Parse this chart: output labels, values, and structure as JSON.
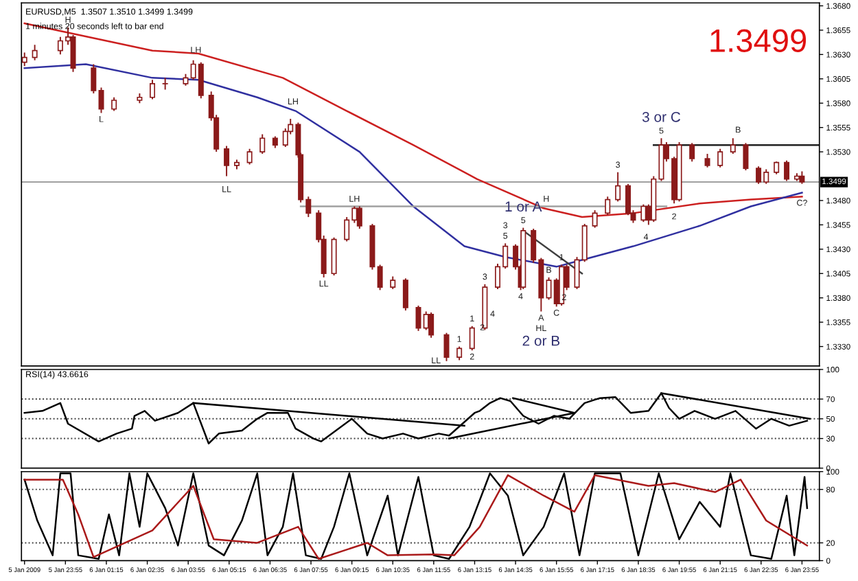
{
  "chart_data": [
    {
      "type": "candlestick",
      "title": "EURUSD,M5  1.3507 1.3510 1.3499 1.3499",
      "subtitle": "1 minutes 20 seconds left to bar end",
      "tick_labels": "y",
      "xlim": [
        "2009-01-05T22:29",
        "2009-01-07T00:29"
      ],
      "ylim": [
        1.331,
        1.3683
      ],
      "yticks": [
        {
          "value": 1.333,
          "label": "1.3330"
        },
        {
          "value": 1.3355,
          "label": "1.3355"
        },
        {
          "value": 1.338,
          "label": "1.3380"
        },
        {
          "value": 1.3405,
          "label": "1.3405"
        },
        {
          "value": 1.343,
          "label": "1.3430"
        },
        {
          "value": 1.3455,
          "label": "1.3455"
        },
        {
          "value": 1.348,
          "label": "1.3480"
        },
        {
          "value": 1.353,
          "label": "1.3530"
        },
        {
          "value": 1.3555,
          "label": "1.3555"
        },
        {
          "value": 1.358,
          "label": "1.3580"
        },
        {
          "value": 1.3605,
          "label": "1.3605"
        },
        {
          "value": 1.363,
          "label": "1.3630"
        },
        {
          "value": 1.3655,
          "label": "1.3655"
        },
        {
          "value": 1.368,
          "label": "1.3680"
        }
      ],
      "ref_lines": [
        {
          "axis": "y",
          "value": 1.3499,
          "label": "1.3499",
          "color": "#a0a0a0"
        }
      ],
      "series": [
        {
          "type": "candlestick",
          "color": "#8b1a1a",
          "x": [
            "2009-01-05T22:35",
            "2009-01-05T22:55",
            "2009-01-05T23:45",
            "2009-01-06T00:00",
            "2009-01-06T00:10",
            "2009-01-06T00:50",
            "2009-01-06T01:05",
            "2009-01-06T01:30",
            "2009-01-06T02:20",
            "2009-01-06T02:45",
            "2009-01-06T03:10",
            "2009-01-06T03:50",
            "2009-01-06T04:05",
            "2009-01-06T04:20",
            "2009-01-06T04:40",
            "2009-01-06T04:50",
            "2009-01-06T05:10",
            "2009-01-06T05:30",
            "2009-01-06T05:55",
            "2009-01-06T06:20",
            "2009-01-06T06:45",
            "2009-01-06T07:05",
            "2009-01-06T07:15",
            "2009-01-06T07:30",
            "2009-01-06T07:35",
            "2009-01-06T07:50",
            "2009-01-06T08:10",
            "2009-01-06T08:20",
            "2009-01-06T08:40",
            "2009-01-06T09:05",
            "2009-01-06T09:20",
            "2009-01-06T09:30",
            "2009-01-06T09:55",
            "2009-01-06T10:10",
            "2009-01-06T10:35",
            "2009-01-06T11:00",
            "2009-01-06T11:25",
            "2009-01-06T11:40",
            "2009-01-06T11:50",
            "2009-01-06T12:20",
            "2009-01-06T12:45",
            "2009-01-06T13:10",
            "2009-01-06T13:35",
            "2009-01-06T14:00",
            "2009-01-06T14:15",
            "2009-01-06T14:35",
            "2009-01-06T14:45",
            "2009-01-06T14:50",
            "2009-01-06T15:10",
            "2009-01-06T15:25",
            "2009-01-06T15:40",
            "2009-01-06T15:55",
            "2009-01-06T16:05",
            "2009-01-06T16:15",
            "2009-01-06T16:35",
            "2009-01-06T16:50",
            "2009-01-06T17:10",
            "2009-01-06T17:35",
            "2009-01-06T17:55",
            "2009-01-06T18:15",
            "2009-01-06T18:25",
            "2009-01-06T18:45",
            "2009-01-06T18:55",
            "2009-01-06T19:05",
            "2009-01-06T19:20",
            "2009-01-06T19:30",
            "2009-01-06T19:45",
            "2009-01-06T19:55",
            "2009-01-06T20:20",
            "2009-01-06T20:50",
            "2009-01-06T21:15",
            "2009-01-06T21:40",
            "2009-01-06T22:05",
            "2009-01-06T22:30",
            "2009-01-06T22:45",
            "2009-01-06T23:05",
            "2009-01-06T23:25",
            "2009-01-06T23:45",
            "2009-01-06T23:55"
          ],
          "ohlc": [
            [
              1.3622,
              1.3632,
              1.3618,
              1.3627
            ],
            [
              1.3627,
              1.364,
              1.3624,
              1.3634
            ],
            [
              1.3634,
              1.3648,
              1.363,
              1.3644
            ],
            [
              1.3644,
              1.3658,
              1.364,
              1.3648
            ],
            [
              1.3648,
              1.365,
              1.3612,
              1.3616
            ],
            [
              1.3616,
              1.362,
              1.359,
              1.3593
            ],
            [
              1.3593,
              1.3596,
              1.357,
              1.3574
            ],
            [
              1.3574,
              1.3586,
              1.3572,
              1.3583
            ],
            [
              1.3583,
              1.359,
              1.358,
              1.3586
            ],
            [
              1.3586,
              1.3604,
              1.3584,
              1.36
            ],
            [
              1.36,
              1.3606,
              1.3594,
              1.36
            ],
            [
              1.36,
              1.361,
              1.3598,
              1.3606
            ],
            [
              1.3606,
              1.3624,
              1.3604,
              1.362
            ],
            [
              1.362,
              1.3622,
              1.3585,
              1.3588
            ],
            [
              1.3588,
              1.3592,
              1.3562,
              1.3565
            ],
            [
              1.3565,
              1.3568,
              1.353,
              1.3533
            ],
            [
              1.3533,
              1.3536,
              1.3505,
              1.3516
            ],
            [
              1.3516,
              1.3522,
              1.3512,
              1.3519
            ],
            [
              1.3519,
              1.3533,
              1.3517,
              1.353
            ],
            [
              1.353,
              1.3548,
              1.3528,
              1.3544
            ],
            [
              1.3544,
              1.3546,
              1.3534,
              1.3537
            ],
            [
              1.3537,
              1.3554,
              1.3535,
              1.3551
            ],
            [
              1.3551,
              1.3564,
              1.3548,
              1.3558
            ],
            [
              1.3558,
              1.356,
              1.3524,
              1.3527
            ],
            [
              1.3527,
              1.3529,
              1.3478,
              1.3481
            ],
            [
              1.3481,
              1.3484,
              1.3463,
              1.3467
            ],
            [
              1.3467,
              1.347,
              1.3437,
              1.344
            ],
            [
              1.344,
              1.3444,
              1.3401,
              1.3405
            ],
            [
              1.3405,
              1.3442,
              1.3403,
              1.344
            ],
            [
              1.344,
              1.3463,
              1.3438,
              1.346
            ],
            [
              1.346,
              1.3474,
              1.3457,
              1.3472
            ],
            [
              1.3472,
              1.3474,
              1.3451,
              1.3454
            ],
            [
              1.3454,
              1.3456,
              1.3409,
              1.3412
            ],
            [
              1.3412,
              1.3414,
              1.3388,
              1.3391
            ],
            [
              1.3391,
              1.3402,
              1.3389,
              1.3398
            ],
            [
              1.3398,
              1.34,
              1.3367,
              1.337
            ],
            [
              1.337,
              1.3372,
              1.3346,
              1.3349
            ],
            [
              1.3349,
              1.3366,
              1.3347,
              1.3363
            ],
            [
              1.3363,
              1.3365,
              1.3339,
              1.3342
            ],
            [
              1.3342,
              1.3344,
              1.3315,
              1.3319
            ],
            [
              1.3319,
              1.333,
              1.3316,
              1.3328
            ],
            [
              1.3328,
              1.3351,
              1.3326,
              1.3349
            ],
            [
              1.3349,
              1.3394,
              1.3347,
              1.3391
            ],
            [
              1.3391,
              1.3415,
              1.3389,
              1.3412
            ],
            [
              1.3412,
              1.3436,
              1.341,
              1.3433
            ],
            [
              1.3433,
              1.3435,
              1.3409,
              1.3412
            ],
            [
              1.3412,
              1.3414,
              1.3388,
              1.3391
            ],
            [
              1.3391,
              1.3452,
              1.3389,
              1.3449
            ],
            [
              1.3449,
              1.3451,
              1.3416,
              1.3419
            ],
            [
              1.3419,
              1.3421,
              1.3366,
              1.338
            ],
            [
              1.338,
              1.3401,
              1.3378,
              1.3398
            ],
            [
              1.3398,
              1.34,
              1.3371,
              1.3374
            ],
            [
              1.3374,
              1.3414,
              1.3372,
              1.3412
            ],
            [
              1.3412,
              1.3414,
              1.3388,
              1.3391
            ],
            [
              1.3391,
              1.3422,
              1.3389,
              1.3419
            ],
            [
              1.3419,
              1.3456,
              1.3417,
              1.3454
            ],
            [
              1.3454,
              1.347,
              1.3452,
              1.3467
            ],
            [
              1.3467,
              1.3484,
              1.3465,
              1.3481
            ],
            [
              1.3481,
              1.3509,
              1.3479,
              1.3495
            ],
            [
              1.3495,
              1.3497,
              1.3465,
              1.3467
            ],
            [
              1.3467,
              1.347,
              1.3457,
              1.346
            ],
            [
              1.346,
              1.3476,
              1.3458,
              1.3474
            ],
            [
              1.3474,
              1.3476,
              1.3455,
              1.346
            ],
            [
              1.346,
              1.3505,
              1.3458,
              1.3502
            ],
            [
              1.3502,
              1.3544,
              1.35,
              1.3537
            ],
            [
              1.3537,
              1.354,
              1.352,
              1.3523
            ],
            [
              1.3523,
              1.3525,
              1.3477,
              1.3481
            ],
            [
              1.3481,
              1.354,
              1.3479,
              1.3537
            ],
            [
              1.3537,
              1.3539,
              1.352,
              1.3523
            ],
            [
              1.3523,
              1.3528,
              1.3514,
              1.3516
            ],
            [
              1.3516,
              1.3533,
              1.3514,
              1.353
            ],
            [
              1.353,
              1.3544,
              1.3528,
              1.3537
            ],
            [
              1.3537,
              1.3539,
              1.3511,
              1.3513
            ],
            [
              1.3513,
              1.3515,
              1.3497,
              1.3499
            ],
            [
              1.3499,
              1.3512,
              1.3497,
              1.3509
            ],
            [
              1.3509,
              1.352,
              1.3507,
              1.3519
            ],
            [
              1.3519,
              1.3521,
              1.35,
              1.3502
            ],
            [
              1.3502,
              1.3508,
              1.35,
              1.3505
            ],
            [
              1.3505,
              1.351,
              1.3497,
              1.3499
            ]
          ]
        },
        {
          "type": "line",
          "color": "#cc2020",
          "x": [
            "2009-01-05T22:35",
            "2009-01-06T02:45",
            "2009-01-06T04:15",
            "2009-01-06T07:00",
            "2009-01-06T09:05",
            "2009-01-06T11:15",
            "2009-01-06T13:20",
            "2009-01-06T15:30",
            "2009-01-06T16:45",
            "2009-01-06T18:25",
            "2009-01-06T20:35",
            "2009-01-06T22:15",
            "2009-01-06T23:55"
          ],
          "values": [
            1.3662,
            1.3634,
            1.3631,
            1.3606,
            1.3572,
            1.3537,
            1.3502,
            1.3472,
            1.3463,
            1.3467,
            1.3477,
            1.3481,
            1.3484
          ]
        },
        {
          "type": "line",
          "color": "#3030a0",
          "x": [
            "2009-01-05T22:35",
            "2009-01-06T00:35",
            "2009-01-06T02:45",
            "2009-01-06T04:15",
            "2009-01-06T06:10",
            "2009-01-06T07:25",
            "2009-01-06T09:30",
            "2009-01-06T11:15",
            "2009-01-06T12:55",
            "2009-01-06T14:15",
            "2009-01-06T15:55",
            "2009-01-06T16:45",
            "2009-01-06T18:25",
            "2009-01-06T20:35",
            "2009-01-06T22:15",
            "2009-01-06T23:55"
          ],
          "values": [
            1.3616,
            1.362,
            1.3606,
            1.3604,
            1.3586,
            1.3572,
            1.353,
            1.3474,
            1.3433,
            1.3422,
            1.3412,
            1.3419,
            1.3433,
            1.3454,
            1.3474,
            1.3488
          ]
        },
        {
          "type": "line",
          "color": "#a0a0a0",
          "x": [
            "2009-01-06T07:35",
            "2009-01-06T19:30"
          ],
          "values": [
            1.3474,
            1.3474
          ]
        },
        {
          "type": "line",
          "color": "#202020",
          "x": [
            "2009-01-06T19:05",
            "2009-01-07T00:29"
          ],
          "values": [
            1.3537,
            1.3537
          ]
        },
        {
          "type": "line",
          "color": "#404040",
          "x": [
            "2009-01-06T14:50",
            "2009-01-06T16:45"
          ],
          "values": [
            1.3449,
            1.3405
          ]
        }
      ],
      "annotations": [
        "1.3499",
        {
          "text": "H",
          "x": "2009-01-06T00:00",
          "y": 1.3658
        },
        {
          "text": "L",
          "x": "2009-01-06T01:05",
          "y": 1.357
        },
        {
          "text": "LH",
          "x": "2009-01-06T04:10",
          "y": 1.3627
        },
        {
          "text": "LH",
          "x": "2009-01-06T07:20",
          "y": 1.3574
        },
        {
          "text": "LL",
          "x": "2009-01-06T05:10",
          "y": 1.3498
        },
        {
          "text": "LL",
          "x": "2009-01-06T08:20",
          "y": 1.3401
        },
        {
          "text": "LH",
          "x": "2009-01-06T09:20",
          "y": 1.3474
        },
        {
          "text": "LL",
          "x": "2009-01-06T12:20",
          "y": 1.3315
        },
        {
          "text": "1",
          "x": "2009-01-06T12:45",
          "y": 1.333
        },
        {
          "text": "2",
          "x": "2009-01-06T13:10",
          "y": 1.3326
        },
        {
          "text": "1",
          "x": "2009-01-06T13:10",
          "y": 1.3351
        },
        {
          "text": "2",
          "x": "2009-01-06T13:30",
          "y": 1.3349
        },
        {
          "text": "3",
          "x": "2009-01-06T13:35",
          "y": 1.3394
        },
        {
          "text": "4",
          "x": "2009-01-06T13:50",
          "y": 1.337
        },
        {
          "text": "5",
          "x": "2009-01-06T14:15",
          "y": 1.3436
        },
        {
          "text": "3",
          "x": "2009-01-06T14:15",
          "y": 1.3436
        },
        {
          "text": "5",
          "x": "2009-01-06T14:50",
          "y": 1.3452
        },
        {
          "text": "1 or A",
          "x": "2009-01-06T14:50",
          "y": 1.3452
        },
        {
          "text": "4",
          "x": "2009-01-06T14:45",
          "y": 1.3388
        },
        {
          "text": "B",
          "x": "2009-01-06T15:40",
          "y": 1.3401
        },
        {
          "text": "A",
          "x": "2009-01-06T15:25",
          "y": 1.3366
        },
        {
          "text": "C",
          "x": "2009-01-06T15:55",
          "y": 1.3371
        },
        {
          "text": "1",
          "x": "2009-01-06T16:05",
          "y": 1.3414
        },
        {
          "text": "2",
          "x": "2009-01-06T16:10",
          "y": 1.338
        },
        {
          "text": "HL",
          "x": "2009-01-06T15:25",
          "y": 1.3366
        },
        {
          "text": "2 or B",
          "x": "2009-01-06T15:25",
          "y": 1.3366
        },
        {
          "text": "H",
          "x": "2009-01-06T15:35",
          "y": 1.3474
        },
        {
          "text": "3",
          "x": "2009-01-06T17:55",
          "y": 1.3509
        },
        {
          "text": "4",
          "x": "2009-01-06T18:50",
          "y": 1.3449
        },
        {
          "text": "5",
          "x": "2009-01-06T19:20",
          "y": 1.3544
        },
        {
          "text": "3 or C",
          "x": "2009-01-06T19:20",
          "y": 1.3544
        },
        {
          "text": "B",
          "x": "2009-01-06T21:50",
          "y": 1.3545
        },
        {
          "text": "C?",
          "x": "2009-01-06T23:55",
          "y": 1.3484
        },
        {
          "text": "2",
          "x": "2009-01-06T19:45",
          "y": 1.347
        }
      ]
    },
    {
      "type": "line",
      "title": "RSI(14) 43.6616",
      "tick_labels": "y",
      "xlim": [
        "2009-01-05T22:29",
        "2009-01-07T00:29"
      ],
      "ylim": [
        0,
        100
      ],
      "yticks": [
        0,
        30,
        50,
        70,
        100
      ],
      "ref_lines": [
        {
          "axis": "y",
          "value": 30,
          "line_style": "dotted",
          "color": "#404040"
        },
        {
          "axis": "y",
          "value": 50,
          "line_style": "dotted",
          "color": "#404040"
        },
        {
          "axis": "y",
          "value": 70,
          "line_style": "dotted",
          "color": "#404040"
        }
      ],
      "series": [
        {
          "color": "#000000",
          "x": [
            "2009-01-05T22:35",
            "2009-01-05T23:10",
            "2009-01-05T23:45",
            "2009-01-06T00:00",
            "2009-01-06T01:00",
            "2009-01-06T01:35",
            "2009-01-06T02:05",
            "2009-01-06T02:10",
            "2009-01-06T02:30",
            "2009-01-06T02:50",
            "2009-01-06T03:35",
            "2009-01-06T04:05",
            "2009-01-06T04:35",
            "2009-01-06T04:55",
            "2009-01-06T05:40",
            "2009-01-06T06:10",
            "2009-01-06T06:30",
            "2009-01-06T07:10",
            "2009-01-06T07:25",
            "2009-01-06T08:00",
            "2009-01-06T08:15",
            "2009-01-06T09:15",
            "2009-01-06T09:45",
            "2009-01-06T10:15",
            "2009-01-06T10:55",
            "2009-01-06T11:25",
            "2009-01-06T12:05",
            "2009-01-06T12:25",
            "2009-01-06T13:15",
            "2009-01-06T13:25",
            "2009-01-06T13:45",
            "2009-01-06T14:05",
            "2009-01-06T14:25",
            "2009-01-06T14:50",
            "2009-01-06T15:20",
            "2009-01-06T15:50",
            "2009-01-06T16:20",
            "2009-01-06T16:50",
            "2009-01-06T17:20",
            "2009-01-06T17:50",
            "2009-01-06T18:20",
            "2009-01-06T18:55",
            "2009-01-06T19:20",
            "2009-01-06T19:35",
            "2009-01-06T19:55",
            "2009-01-06T20:25",
            "2009-01-06T21:05",
            "2009-01-06T21:45",
            "2009-01-06T22:25",
            "2009-01-06T22:55",
            "2009-01-06T23:30",
            "2009-01-07T00:05"
          ],
          "values": [
            56,
            58,
            66,
            45,
            27,
            35,
            40,
            53,
            58,
            48,
            56,
            66,
            25,
            35,
            38,
            50,
            56,
            56,
            40,
            30,
            27,
            50,
            35,
            30,
            35,
            30,
            35,
            33,
            56,
            58,
            66,
            71,
            68,
            53,
            45,
            53,
            50,
            66,
            71,
            72,
            56,
            58,
            76,
            61,
            50,
            58,
            50,
            58,
            40,
            50,
            43,
            48
          ]
        },
        {
          "color": "#000000",
          "x": [
            "2009-01-06T04:05",
            "2009-01-06T12:55"
          ],
          "values": [
            66,
            43
          ]
        },
        {
          "color": "#000000",
          "x": [
            "2009-01-06T12:25",
            "2009-01-06T16:30"
          ],
          "values": [
            30,
            56
          ]
        },
        {
          "color": "#000000",
          "x": [
            "2009-01-06T14:30",
            "2009-01-06T16:30"
          ],
          "values": [
            71,
            56
          ]
        },
        {
          "color": "#000000",
          "x": [
            "2009-01-06T19:20",
            "2009-01-07T00:10"
          ],
          "values": [
            76,
            50
          ]
        }
      ]
    },
    {
      "type": "line",
      "xlim": [
        "2009-01-05T22:29",
        "2009-01-07T00:29"
      ],
      "ylim": [
        0,
        100
      ],
      "yticks": [
        0,
        20,
        80,
        100
      ],
      "xticks": [
        {
          "value": "2009-01-05T22:35",
          "label": "5 Jan 2009"
        },
        {
          "value": "2009-01-05T23:55",
          "label": "5 Jan 23:55"
        },
        {
          "value": "2009-01-06T01:15",
          "label": "6 Jan 01:15"
        },
        {
          "value": "2009-01-06T02:35",
          "label": "6 Jan 02:35"
        },
        {
          "value": "2009-01-06T03:55",
          "label": "6 Jan 03:55"
        },
        {
          "value": "2009-01-06T05:15",
          "label": "6 Jan 05:15"
        },
        {
          "value": "2009-01-06T06:35",
          "label": "6 Jan 06:35"
        },
        {
          "value": "2009-01-06T07:55",
          "label": "6 Jan 07:55"
        },
        {
          "value": "2009-01-06T09:15",
          "label": "6 Jan 09:15"
        },
        {
          "value": "2009-01-06T10:35",
          "label": "6 Jan 10:35"
        },
        {
          "value": "2009-01-06T11:55",
          "label": "6 Jan 11:55"
        },
        {
          "value": "2009-01-06T13:15",
          "label": "6 Jan 13:15"
        },
        {
          "value": "2009-01-06T14:35",
          "label": "6 Jan 14:35"
        },
        {
          "value": "2009-01-06T15:55",
          "label": "6 Jan 15:55"
        },
        {
          "value": "2009-01-06T17:15",
          "label": "6 Jan 17:15"
        },
        {
          "value": "2009-01-06T18:35",
          "label": "6 Jan 18:35"
        },
        {
          "value": "2009-01-06T19:55",
          "label": "6 Jan 19:55"
        },
        {
          "value": "2009-01-06T21:15",
          "label": "6 Jan 21:15"
        },
        {
          "value": "2009-01-06T22:35",
          "label": "6 Jan 22:35"
        },
        {
          "value": "2009-01-06T23:55",
          "label": "6 Jan 23:55"
        }
      ],
      "ref_lines": [
        {
          "axis": "y",
          "value": 20,
          "line_style": "dotted",
          "color": "#404040"
        },
        {
          "axis": "y",
          "value": 80,
          "line_style": "dotted",
          "color": "#404040"
        }
      ],
      "series": [
        {
          "color": "#000000",
          "x": [
            "2009-01-05T22:35",
            "2009-01-05T23:00",
            "2009-01-05T23:30",
            "2009-01-05T23:45",
            "2009-01-06T00:05",
            "2009-01-06T00:20",
            "2009-01-06T01:00",
            "2009-01-06T01:20",
            "2009-01-06T01:40",
            "2009-01-06T02:00",
            "2009-01-06T02:20",
            "2009-01-06T02:35",
            "2009-01-06T03:10",
            "2009-01-06T03:35",
            "2009-01-06T04:05",
            "2009-01-06T04:35",
            "2009-01-06T05:05",
            "2009-01-06T05:40",
            "2009-01-06T06:10",
            "2009-01-06T06:30",
            "2009-01-06T07:00",
            "2009-01-06T07:20",
            "2009-01-06T07:45",
            "2009-01-06T08:15",
            "2009-01-06T08:40",
            "2009-01-06T09:10",
            "2009-01-06T09:45",
            "2009-01-06T10:25",
            "2009-01-06T10:45",
            "2009-01-06T11:25",
            "2009-01-06T11:55",
            "2009-01-06T12:25",
            "2009-01-06T13:05",
            "2009-01-06T13:45",
            "2009-01-06T14:20",
            "2009-01-06T14:50",
            "2009-01-06T15:30",
            "2009-01-06T16:10",
            "2009-01-06T16:40",
            "2009-01-06T17:10",
            "2009-01-06T18:00",
            "2009-01-06T18:35",
            "2009-01-06T19:15",
            "2009-01-06T19:55",
            "2009-01-06T20:35",
            "2009-01-06T21:15",
            "2009-01-06T21:35",
            "2009-01-06T22:15",
            "2009-01-06T22:55",
            "2009-01-06T23:25",
            "2009-01-06T23:40",
            "2009-01-07T00:00",
            "2009-01-07T00:05"
          ],
          "values": [
            91,
            45,
            6,
            98,
            98,
            6,
            2,
            52,
            6,
            98,
            38,
            98,
            59,
            17,
            98,
            17,
            6,
            45,
            98,
            6,
            38,
            98,
            6,
            2,
            38,
            98,
            6,
            73,
            6,
            94,
            6,
            2,
            38,
            98,
            73,
            6,
            38,
            98,
            6,
            98,
            98,
            6,
            98,
            24,
            66,
            38,
            98,
            6,
            2,
            73,
            6,
            94,
            59
          ]
        },
        {
          "color": "#aa1a1a",
          "x": [
            "2009-01-05T22:35",
            "2009-01-05T23:50",
            "2009-01-06T00:20",
            "2009-01-06T00:50",
            "2009-01-06T02:45",
            "2009-01-06T04:05",
            "2009-01-06T04:45",
            "2009-01-06T06:10",
            "2009-01-06T07:30",
            "2009-01-06T08:10",
            "2009-01-06T09:45",
            "2009-01-06T10:25",
            "2009-01-06T11:55",
            "2009-01-06T12:35",
            "2009-01-06T13:25",
            "2009-01-06T14:20",
            "2009-01-06T15:30",
            "2009-01-06T16:30",
            "2009-01-06T17:10",
            "2009-01-06T18:55",
            "2009-01-06T19:45",
            "2009-01-06T21:05",
            "2009-01-06T21:55",
            "2009-01-06T22:45",
            "2009-01-07T00:05"
          ],
          "values": [
            91,
            91,
            52,
            4,
            34,
            84,
            24,
            20,
            38,
            2,
            20,
            6,
            7,
            6,
            38,
            96,
            73,
            55,
            96,
            84,
            87,
            77,
            91,
            45,
            17
          ]
        }
      ]
    }
  ]
}
